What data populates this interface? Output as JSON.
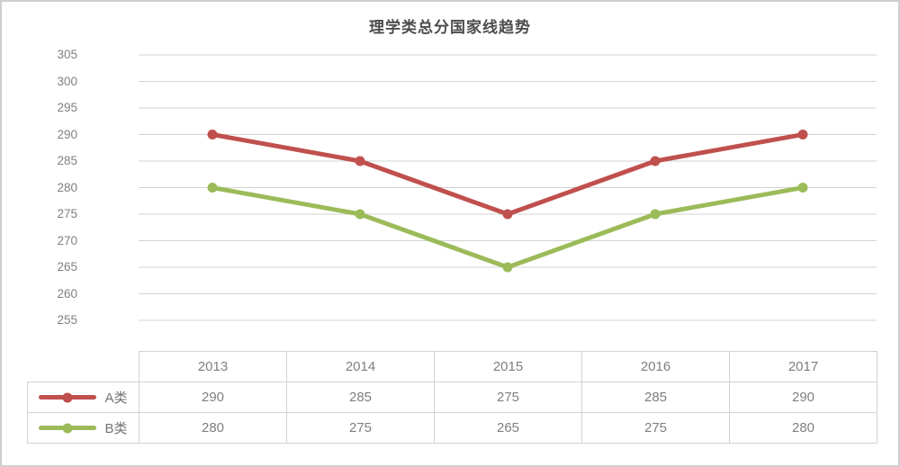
{
  "title": "理学类总分国家线趋势",
  "chart_data": {
    "type": "line",
    "title": "理学类总分国家线趋势",
    "categories": [
      "2013",
      "2014",
      "2015",
      "2016",
      "2017"
    ],
    "series": [
      {
        "name": "A类",
        "values": [
          290,
          285,
          275,
          285,
          290
        ],
        "color": "#c0504d"
      },
      {
        "name": "B类",
        "values": [
          280,
          275,
          265,
          275,
          280
        ],
        "color": "#9bbb59"
      }
    ],
    "xlabel": "",
    "ylabel": "",
    "ylim": [
      255,
      305
    ],
    "ytick_step": 5,
    "yticks": [
      305,
      300,
      295,
      290,
      285,
      280,
      275,
      270,
      265,
      260,
      255
    ],
    "grid": "horizontal",
    "gridline_color": "#d3d3d3",
    "legend_position": "data-table-left",
    "data_table_shown": true,
    "marker": "circle"
  }
}
